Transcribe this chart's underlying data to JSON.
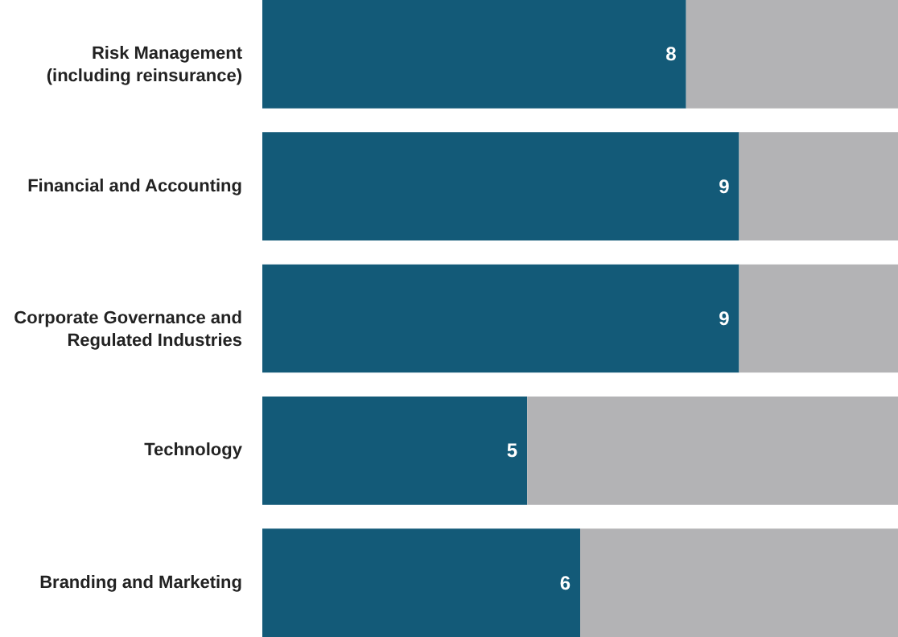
{
  "chart_data": {
    "type": "bar",
    "orientation": "horizontal",
    "stacked": true,
    "categories": [
      "Risk Management\n(including reinsurance)",
      "Financial and Accounting",
      "Corporate Governance and\nRegulated Industries",
      "Technology",
      "Branding and Marketing"
    ],
    "series": [
      {
        "color": "#135a78",
        "values": [
          8,
          9,
          9,
          5,
          6
        ],
        "value_labels": [
          "8",
          "9",
          "9",
          "5",
          "6"
        ]
      },
      {
        "color": "#b3b3b5",
        "values": [
          4,
          3,
          3,
          7,
          6
        ]
      }
    ],
    "xlim": [
      0,
      12
    ]
  }
}
